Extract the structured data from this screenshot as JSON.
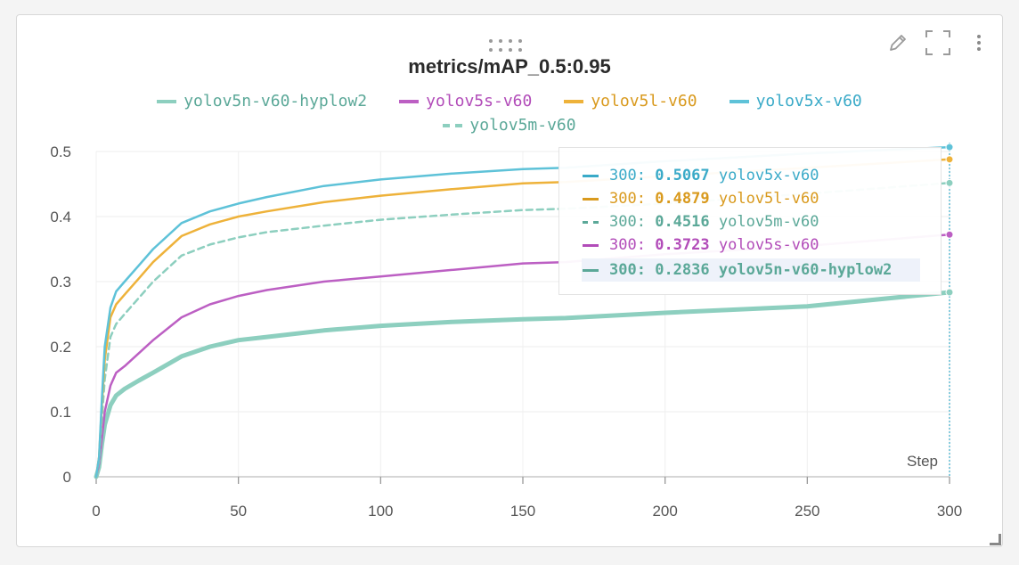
{
  "panel": {
    "title": "metrics/mAP_0.5:0.95",
    "icons": [
      "pencil-icon",
      "fullscreen-icon",
      "more-vertical-icon",
      "drag-handle-icon",
      "resize-icon"
    ]
  },
  "legend": [
    {
      "label": "yolov5n-v60-hyplow2",
      "color": "#8dcfbf",
      "dashed": false
    },
    {
      "label": "yolov5s-v60",
      "color": "#bc5fc3",
      "dashed": false
    },
    {
      "label": "yolov5l-v60",
      "color": "#eeb23a",
      "dashed": false
    },
    {
      "label": "yolov5x-v60",
      "color": "#5ec2d8",
      "dashed": false
    },
    {
      "label": "yolov5m-v60",
      "color": "#8dcfbf",
      "dashed": true
    }
  ],
  "tooltip": {
    "rows": [
      {
        "step": "300:",
        "value": "0.5067",
        "name": "yolov5x-v60",
        "color": "#3aaac8",
        "dashed": false,
        "highlight": false
      },
      {
        "step": "300:",
        "value": "0.4879",
        "name": "yolov5l-v60",
        "color": "#d99a1e",
        "dashed": false,
        "highlight": false
      },
      {
        "step": "300:",
        "value": "0.4516",
        "name": "yolov5m-v60",
        "color": "#5ba898",
        "dashed": true,
        "highlight": false
      },
      {
        "step": "300:",
        "value": "0.3723",
        "name": "yolov5s-v60",
        "color": "#b24cb9",
        "dashed": false,
        "highlight": false
      },
      {
        "step": "300:",
        "value": "0.2836",
        "name": "yolov5n-v60-hyplow2",
        "color": "#5ba898",
        "dashed": false,
        "highlight": true
      }
    ]
  },
  "chart_data": {
    "type": "line",
    "title": "metrics/mAP_0.5:0.95",
    "xlabel": "Step",
    "ylabel": "",
    "xlim": [
      0,
      300
    ],
    "ylim": [
      0,
      0.5
    ],
    "xticks": [
      0,
      50,
      100,
      150,
      200,
      250,
      300
    ],
    "yticks": [
      0,
      0.1,
      0.2,
      0.3,
      0.4,
      0.5
    ],
    "ytick_labels": [
      "0",
      "0.1",
      "0.2",
      "0.3",
      "0.4",
      "0.5"
    ],
    "grid": true,
    "legend_position": "top-center",
    "hover_step": 300,
    "series": [
      {
        "name": "yolov5x-v60",
        "color": "#5ec2d8",
        "dashed": false,
        "width": 2.5,
        "x": [
          0,
          1,
          2,
          3,
          5,
          7,
          10,
          15,
          20,
          30,
          40,
          50,
          60,
          80,
          100,
          125,
          150,
          165,
          200,
          250,
          300
        ],
        "y": [
          0.0,
          0.03,
          0.12,
          0.2,
          0.26,
          0.285,
          0.3,
          0.325,
          0.35,
          0.39,
          0.408,
          0.42,
          0.43,
          0.447,
          0.457,
          0.466,
          0.473,
          0.475,
          0.485,
          0.497,
          0.5067
        ]
      },
      {
        "name": "yolov5l-v60",
        "color": "#eeb23a",
        "dashed": false,
        "width": 2.5,
        "x": [
          0,
          1,
          2,
          3,
          5,
          7,
          10,
          15,
          20,
          30,
          40,
          50,
          60,
          80,
          100,
          125,
          150,
          165,
          200,
          250,
          300
        ],
        "y": [
          0.0,
          0.03,
          0.11,
          0.18,
          0.245,
          0.265,
          0.28,
          0.305,
          0.33,
          0.37,
          0.388,
          0.4,
          0.408,
          0.422,
          0.432,
          0.442,
          0.451,
          0.453,
          0.462,
          0.475,
          0.4879
        ]
      },
      {
        "name": "yolov5m-v60",
        "color": "#8dcfbf",
        "dashed": true,
        "width": 2.5,
        "x": [
          0,
          1,
          2,
          3,
          5,
          7,
          10,
          15,
          20,
          30,
          40,
          50,
          60,
          80,
          100,
          125,
          150,
          165,
          200,
          250,
          300
        ],
        "y": [
          0.0,
          0.025,
          0.09,
          0.15,
          0.215,
          0.235,
          0.25,
          0.275,
          0.3,
          0.34,
          0.357,
          0.368,
          0.376,
          0.386,
          0.395,
          0.403,
          0.41,
          0.412,
          0.42,
          0.435,
          0.4516
        ]
      },
      {
        "name": "yolov5s-v60",
        "color": "#bc5fc3",
        "dashed": false,
        "width": 2.5,
        "x": [
          0,
          1,
          2,
          3,
          5,
          7,
          10,
          15,
          20,
          30,
          40,
          50,
          60,
          80,
          100,
          125,
          150,
          165,
          200,
          250,
          300
        ],
        "y": [
          0.0,
          0.02,
          0.06,
          0.1,
          0.14,
          0.16,
          0.17,
          0.19,
          0.21,
          0.245,
          0.265,
          0.278,
          0.287,
          0.3,
          0.308,
          0.318,
          0.328,
          0.33,
          0.342,
          0.355,
          0.3723
        ]
      },
      {
        "name": "yolov5n-v60-hyplow2",
        "color": "#8dcfbf",
        "dashed": false,
        "width": 5,
        "x": [
          0,
          1,
          2,
          3,
          5,
          7,
          10,
          15,
          20,
          30,
          40,
          50,
          60,
          80,
          100,
          125,
          150,
          165,
          200,
          250,
          300
        ],
        "y": [
          0.0,
          0.015,
          0.05,
          0.08,
          0.11,
          0.125,
          0.135,
          0.148,
          0.16,
          0.185,
          0.2,
          0.21,
          0.215,
          0.225,
          0.232,
          0.238,
          0.242,
          0.244,
          0.252,
          0.262,
          0.2836
        ]
      }
    ]
  }
}
